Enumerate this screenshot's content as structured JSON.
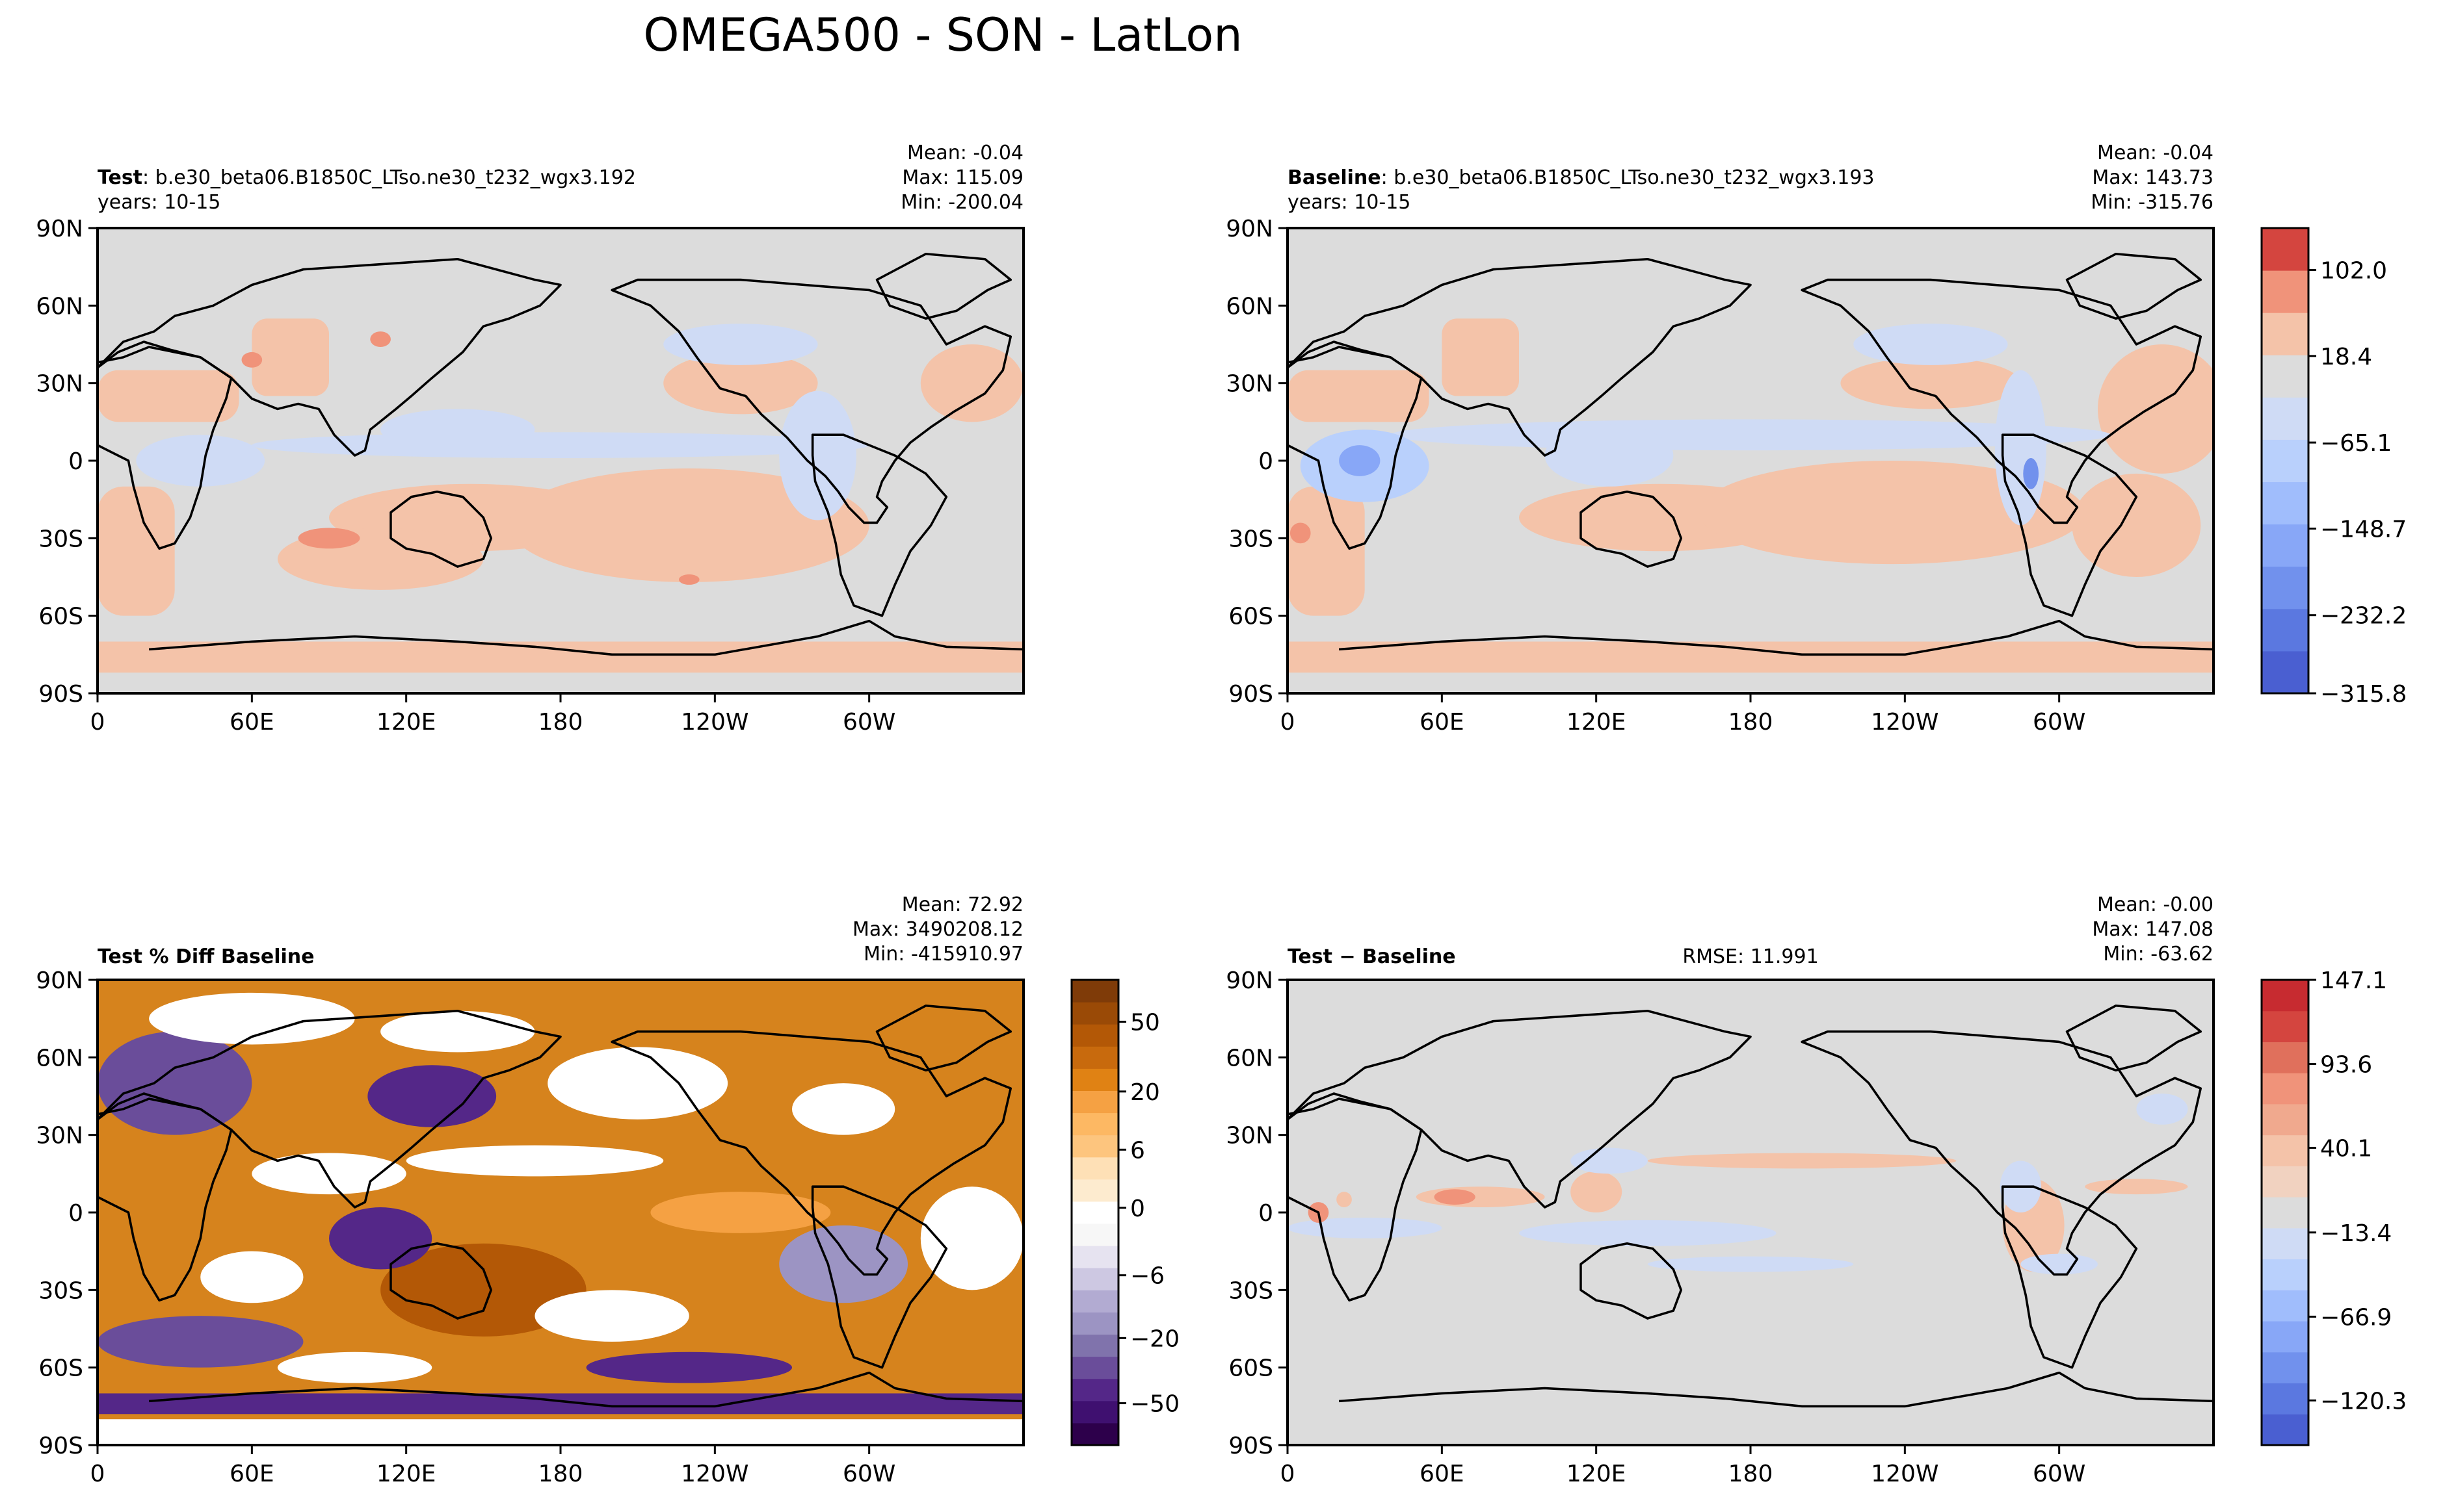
{
  "figure": {
    "title": "OMEGA500 - SON - LatLon"
  },
  "axes_common": {
    "lat_ticks": [
      "90N",
      "60N",
      "30N",
      "0",
      "30S",
      "60S",
      "90S"
    ],
    "lon_ticks": [
      "0",
      "60E",
      "120E",
      "180",
      "120W",
      "60W"
    ]
  },
  "panels": [
    {
      "id": "test",
      "label_bold": "Test",
      "label_rest": ": b.e30_beta06.B1850C_LTso.ne30_t232_wgx3.192",
      "years": "years: 10-15",
      "center_text": "",
      "stats": [
        "Mean: -0.04",
        "Max: 115.09",
        "Min: -200.04"
      ]
    },
    {
      "id": "baseline",
      "label_bold": "Baseline",
      "label_rest": ": b.e30_beta06.B1850C_LTso.ne30_t232_wgx3.193",
      "years": "years: 10-15",
      "center_text": "",
      "stats": [
        "Mean: -0.04",
        "Max: 143.73",
        "Min: -315.76"
      ]
    },
    {
      "id": "pctdiff",
      "label_bold": "Test % Diff Baseline",
      "label_rest": "",
      "years": "",
      "center_text": "",
      "stats": [
        "Mean: 72.92",
        "Max: 3490208.12",
        "Min: -415910.97"
      ]
    },
    {
      "id": "diff",
      "label_bold": "Test − Baseline",
      "label_rest": "",
      "years": "",
      "center_text": "RMSE: 11.991",
      "stats": [
        "Mean: -0.00",
        "Max: 147.08",
        "Min: -63.62"
      ]
    }
  ],
  "colorbars": [
    {
      "id": "cbar-shared",
      "tick_labels": [
        "102.0",
        "18.4",
        "−65.1",
        "−148.7",
        "−232.2",
        "−315.8"
      ],
      "colors": [
        "#4a5fd1",
        "#5b78e0",
        "#7191ed",
        "#88a7f7",
        "#a0bdfc",
        "#b9d0fc",
        "#cfdbf5",
        "#dcdcdc",
        "#f4c3a9",
        "#f0937a",
        "#d4453f"
      ]
    },
    {
      "id": "cbar-pct",
      "tick_labels": [
        "50",
        "20",
        "6",
        "0",
        "−6",
        "−20",
        "−50"
      ],
      "colors": [
        "#2d004b",
        "#3f1070",
        "#542788",
        "#6a4d9a",
        "#8073ac",
        "#9c94c3",
        "#b2abd2",
        "#cdc8e2",
        "#e6e3f0",
        "#f7f7f7",
        "#ffffff",
        "#fdebcf",
        "#fee0b6",
        "#fdc57e",
        "#fdb863",
        "#f5a143",
        "#e08214",
        "#c86a0d",
        "#b35806",
        "#9a4a06",
        "#7f3b08"
      ]
    },
    {
      "id": "cbar-diff",
      "tick_labels": [
        "147.1",
        "93.6",
        "40.1",
        "−13.4",
        "−66.9",
        "−120.3"
      ],
      "colors": [
        "#4a5fd1",
        "#5b78e0",
        "#7191ed",
        "#88a7f7",
        "#a0bdfc",
        "#b9d0fc",
        "#cfdbf5",
        "#dcdcdc",
        "#f1d2c0",
        "#f4c3a9",
        "#f0a98e",
        "#f0937a",
        "#e0705c",
        "#d4453f",
        "#c72b30"
      ]
    }
  ],
  "chart_data": [
    {
      "type": "heatmap",
      "title": "Test : b.e30_beta06.B1850C_LTso.ne30_t232_wgx3.192",
      "variable": "OMEGA500",
      "x_range": [
        0,
        360
      ],
      "y_range": [
        -90,
        90
      ],
      "stats": {
        "mean": -0.04,
        "max": 115.09,
        "min": -200.04
      },
      "colorbar_ticks": [
        102.0,
        18.4,
        -65.1,
        -148.7,
        -232.2,
        -315.8
      ]
    },
    {
      "type": "heatmap",
      "title": "Baseline : b.e30_beta06.B1850C_LTso.ne30_t232_wgx3.193",
      "variable": "OMEGA500",
      "x_range": [
        0,
        360
      ],
      "y_range": [
        -90,
        90
      ],
      "stats": {
        "mean": -0.04,
        "max": 143.73,
        "min": -315.76
      },
      "colorbar_ticks": [
        102.0,
        18.4,
        -65.1,
        -148.7,
        -232.2,
        -315.8
      ]
    },
    {
      "type": "heatmap",
      "title": "Test % Diff Baseline",
      "x_range": [
        0,
        360
      ],
      "y_range": [
        -90,
        90
      ],
      "stats": {
        "mean": 72.92,
        "max": 3490208.12,
        "min": -415910.97
      },
      "colorbar_ticks": [
        50,
        20,
        6,
        0,
        -6,
        -20,
        -50
      ]
    },
    {
      "type": "heatmap",
      "title": "Test − Baseline",
      "x_range": [
        0,
        360
      ],
      "y_range": [
        -90,
        90
      ],
      "rmse": 11.991,
      "stats": {
        "mean": -0.0,
        "max": 147.08,
        "min": -63.62
      },
      "colorbar_ticks": [
        147.1,
        93.6,
        40.1,
        -13.4,
        -66.9,
        -120.3
      ]
    }
  ]
}
